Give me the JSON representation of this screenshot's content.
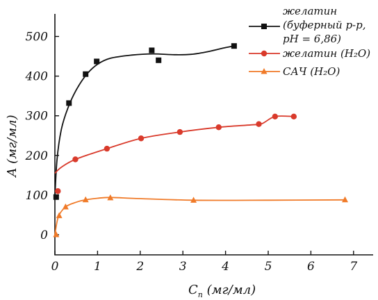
{
  "chart_data": {
    "type": "scatter",
    "title": "",
    "xlabel": "C",
    "xlabel_sub": "п",
    "xlabel_unit": " (мг/мл)",
    "ylabel": "A (мг/мл)",
    "xlim": [
      0,
      7.5
    ],
    "ylim": [
      0,
      560
    ],
    "xticks": [
      0,
      1,
      2,
      3,
      4,
      5,
      6,
      7
    ],
    "yticks": [
      0,
      100,
      200,
      300,
      400,
      500
    ],
    "grid": false,
    "legend_position": "top-right",
    "series": [
      {
        "name_lines": [
          "желатин",
          "(буферный р-р,",
          "pH = 6,86)"
        ],
        "color": "#111111",
        "marker": "square",
        "points": [
          [
            0.03,
            95
          ],
          [
            0.33,
            332
          ],
          [
            0.72,
            405
          ],
          [
            0.98,
            437
          ],
          [
            2.27,
            465
          ],
          [
            2.43,
            440
          ],
          [
            4.2,
            476
          ]
        ],
        "curve": [
          [
            0.0,
            95
          ],
          [
            0.05,
            190
          ],
          [
            0.15,
            265
          ],
          [
            0.3,
            318
          ],
          [
            0.5,
            365
          ],
          [
            0.75,
            405
          ],
          [
            1.0,
            430
          ],
          [
            1.3,
            445
          ],
          [
            1.8,
            453
          ],
          [
            2.3,
            456
          ],
          [
            2.8,
            454
          ],
          [
            3.2,
            455
          ],
          [
            3.6,
            462
          ],
          [
            4.0,
            472
          ],
          [
            4.2,
            476
          ]
        ]
      },
      {
        "name": "желатин (H₂O)",
        "color": "#d93a2b",
        "marker": "circle",
        "points": [
          [
            0.07,
            110
          ],
          [
            0.48,
            190
          ],
          [
            1.22,
            217
          ],
          [
            2.02,
            243
          ],
          [
            2.93,
            259
          ],
          [
            3.84,
            271
          ],
          [
            4.78,
            279
          ],
          [
            5.16,
            298
          ],
          [
            5.6,
            298
          ]
        ],
        "curve": [
          [
            0.0,
            155
          ],
          [
            0.15,
            170
          ],
          [
            0.48,
            190
          ],
          [
            1.22,
            217
          ],
          [
            2.02,
            243
          ],
          [
            2.93,
            259
          ],
          [
            3.84,
            271
          ],
          [
            4.6,
            277
          ],
          [
            4.85,
            280
          ],
          [
            5.16,
            298
          ],
          [
            5.6,
            298
          ]
        ]
      },
      {
        "name": "САЧ (H₂O)",
        "color": "#f07a28",
        "marker": "triangle",
        "points": [
          [
            0.03,
            0
          ],
          [
            0.1,
            48
          ],
          [
            0.25,
            70
          ],
          [
            0.72,
            88
          ],
          [
            1.3,
            93
          ],
          [
            3.25,
            87
          ],
          [
            6.8,
            88
          ]
        ],
        "curve": [
          [
            0.0,
            0
          ],
          [
            0.08,
            45
          ],
          [
            0.25,
            70
          ],
          [
            0.5,
            82
          ],
          [
            0.72,
            88
          ],
          [
            1.0,
            92
          ],
          [
            1.3,
            94
          ],
          [
            2.0,
            91
          ],
          [
            3.25,
            87
          ],
          [
            5.0,
            87
          ],
          [
            6.8,
            88
          ]
        ]
      }
    ]
  }
}
